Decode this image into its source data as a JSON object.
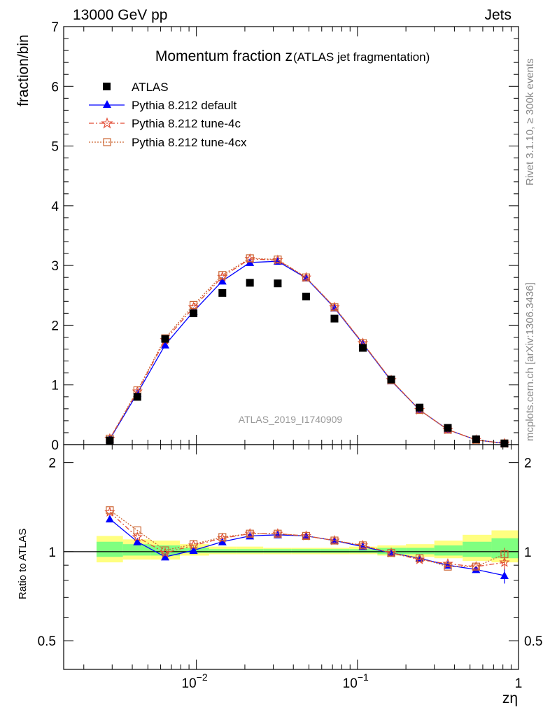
{
  "header": {
    "energy_label": "13000 GeV pp",
    "category_label": "Jets"
  },
  "side_labels": {
    "rivet": "Rivet 3.1.10, ≥ 300k events",
    "mcplots": "mcplots.cern.ch [arXiv:1306.3436]"
  },
  "analysis_id": "ATLAS_2019_I1740909",
  "colors": {
    "data": "#000000",
    "default": "#0000ff",
    "tune4c": "#e24a33",
    "tune4cx": "#cc6633",
    "band_outer": "#ffff80",
    "band_inner": "#80ff80"
  },
  "chart_data": [
    {
      "type": "line",
      "panel": "main",
      "title_main": "Momentum fraction z",
      "title_sub": "(ATLAS jet fragmentation)",
      "ylabel": "fraction/bin",
      "xscale": "log",
      "xlim": [
        0.0015,
        1.0
      ],
      "ylim": [
        0,
        7
      ],
      "yticks": [
        0,
        1,
        2,
        3,
        4,
        5,
        6,
        7
      ],
      "ytick_labels": [
        "0",
        "1",
        "2",
        "3",
        "4",
        "5",
        "6",
        "7"
      ],
      "legend_position": "top-left",
      "x": [
        0.0029,
        0.0043,
        0.0064,
        0.0096,
        0.0145,
        0.0215,
        0.032,
        0.048,
        0.072,
        0.108,
        0.162,
        0.243,
        0.364,
        0.545,
        0.818
      ],
      "series": [
        {
          "name": "ATLAS",
          "style": "data",
          "values": [
            0.07,
            0.8,
            1.77,
            2.2,
            2.54,
            2.71,
            2.7,
            2.48,
            2.11,
            1.62,
            1.09,
            0.62,
            0.28,
            0.09,
            0.02
          ]
        },
        {
          "name": "Pythia 8.212 default",
          "style": "default",
          "values": [
            0.09,
            0.86,
            1.67,
            2.23,
            2.74,
            3.05,
            3.07,
            2.79,
            2.29,
            1.69,
            1.07,
            0.58,
            0.25,
            0.08,
            0.02
          ]
        },
        {
          "name": "Pythia 8.212 tune-4c",
          "style": "tune4c",
          "values": [
            0.1,
            0.89,
            1.75,
            2.3,
            2.81,
            3.11,
            3.09,
            2.8,
            2.3,
            1.7,
            1.08,
            0.58,
            0.25,
            0.08,
            0.02
          ]
        },
        {
          "name": "Pythia 8.212 tune-4cx",
          "style": "tune4cx",
          "values": [
            0.1,
            0.91,
            1.78,
            2.34,
            2.84,
            3.12,
            3.1,
            2.8,
            2.3,
            1.7,
            1.08,
            0.58,
            0.25,
            0.08,
            0.02
          ]
        }
      ]
    },
    {
      "type": "line",
      "panel": "ratio",
      "ylabel": "Ratio to ATLAS",
      "xlabel": "zη",
      "xscale": "log",
      "xlim": [
        0.0015,
        1.0
      ],
      "ylim": [
        0.4,
        2.3
      ],
      "yticks": [
        0.5,
        1,
        2
      ],
      "ytick_labels": [
        "0.5",
        "1",
        "2"
      ],
      "xtick_labels": [
        {
          "value": 0.01,
          "label": "10",
          "sup": "−2"
        },
        {
          "value": 0.1,
          "label": "10",
          "sup": "−1"
        },
        {
          "value": 1,
          "label": "1",
          "sup": ""
        }
      ],
      "x": [
        0.0029,
        0.0043,
        0.0064,
        0.0096,
        0.0145,
        0.0215,
        0.032,
        0.048,
        0.072,
        0.108,
        0.162,
        0.243,
        0.364,
        0.545,
        0.818
      ],
      "bin_edges": [
        0.0024,
        0.0035,
        0.0052,
        0.0079,
        0.012,
        0.0177,
        0.026,
        0.039,
        0.059,
        0.089,
        0.133,
        0.2,
        0.3,
        0.45,
        0.68,
        1.0
      ],
      "band_outer": [
        [
          0.92,
          1.13
        ],
        [
          0.94,
          1.1
        ],
        [
          0.94,
          1.09
        ],
        [
          0.97,
          1.06
        ],
        [
          0.98,
          1.04
        ],
        [
          0.98,
          1.04
        ],
        [
          0.98,
          1.03
        ],
        [
          0.98,
          1.03
        ],
        [
          0.98,
          1.03
        ],
        [
          0.98,
          1.04
        ],
        [
          0.97,
          1.05
        ],
        [
          0.96,
          1.06
        ],
        [
          0.95,
          1.09
        ],
        [
          0.93,
          1.14
        ],
        [
          0.92,
          1.18
        ]
      ],
      "band_inner": [
        [
          0.96,
          1.08
        ],
        [
          0.97,
          1.06
        ],
        [
          0.97,
          1.05
        ],
        [
          0.99,
          1.03
        ],
        [
          0.99,
          1.02
        ],
        [
          0.99,
          1.02
        ],
        [
          0.99,
          1.02
        ],
        [
          0.99,
          1.02
        ],
        [
          0.99,
          1.02
        ],
        [
          0.99,
          1.02
        ],
        [
          0.98,
          1.03
        ],
        [
          0.98,
          1.03
        ],
        [
          0.97,
          1.05
        ],
        [
          0.96,
          1.08
        ],
        [
          0.95,
          1.11
        ]
      ],
      "series": [
        {
          "name": "Pythia 8.212 default",
          "style": "default",
          "values": [
            1.29,
            1.08,
            0.96,
            1.01,
            1.08,
            1.13,
            1.14,
            1.13,
            1.09,
            1.04,
            0.99,
            0.95,
            0.9,
            0.87,
            0.83
          ],
          "errors": [
            0,
            0,
            0,
            0,
            0,
            0,
            0,
            0,
            0,
            0,
            0,
            0,
            0,
            0,
            0.05
          ]
        },
        {
          "name": "Pythia 8.212 tune-4c",
          "style": "tune4c",
          "values": [
            1.36,
            1.12,
            0.99,
            1.05,
            1.11,
            1.15,
            1.15,
            1.13,
            1.09,
            1.05,
            0.99,
            0.94,
            0.91,
            0.89,
            0.92
          ],
          "errors": [
            0,
            0,
            0,
            0,
            0,
            0,
            0,
            0,
            0,
            0,
            0,
            0,
            0,
            0,
            0.05
          ]
        },
        {
          "name": "Pythia 8.212 tune-4cx",
          "style": "tune4cx",
          "values": [
            1.38,
            1.18,
            1.01,
            1.06,
            1.12,
            1.15,
            1.15,
            1.13,
            1.09,
            1.05,
            0.99,
            0.95,
            0.89,
            0.89,
            0.98
          ],
          "errors": [
            0,
            0,
            0,
            0,
            0,
            0,
            0,
            0,
            0,
            0,
            0,
            0,
            0,
            0,
            0.05
          ]
        }
      ]
    }
  ]
}
